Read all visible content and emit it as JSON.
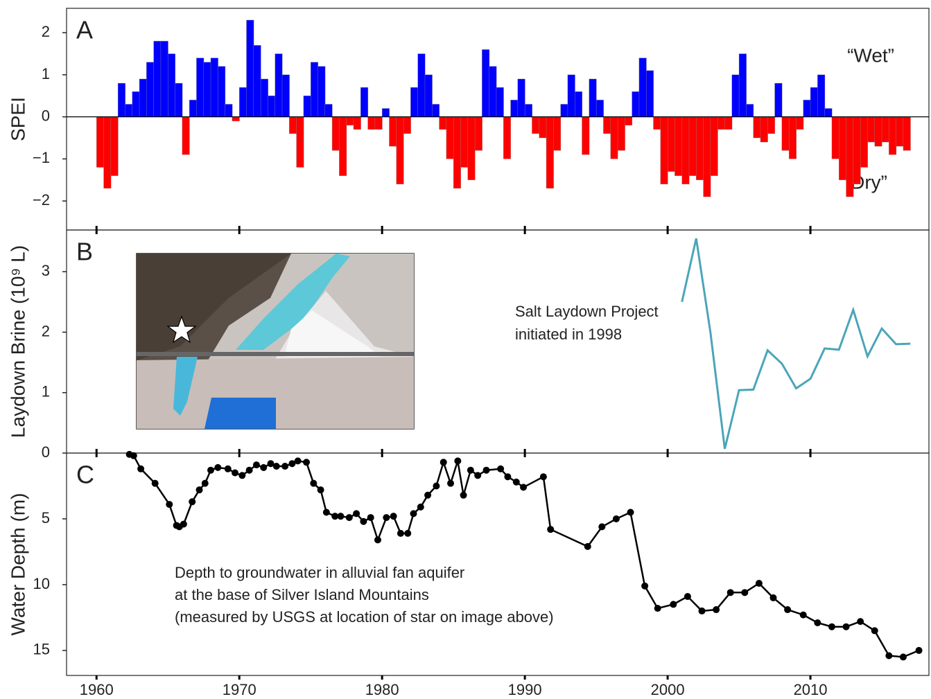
{
  "chart_data": [
    {
      "type": "bar",
      "panel_label": "A",
      "ylabel": "SPEI",
      "annotations": [
        "“Wet”",
        "“Dry”"
      ],
      "positive_color": "#0000ff",
      "negative_color": "#ff0000",
      "xlim": [
        1957.9,
        2018.3
      ],
      "ylim": [
        -2.69,
        2.58
      ],
      "yticks": [
        {
          "value": -2,
          "label": "−2"
        },
        {
          "value": -1,
          "label": "−1"
        },
        0,
        1,
        2
      ],
      "x": [
        1960.0,
        1960.5,
        1961.0,
        1961.5,
        1962.0,
        1962.5,
        1963.0,
        1963.5,
        1964.0,
        1964.5,
        1965.0,
        1965.5,
        1966.0,
        1966.5,
        1967.0,
        1967.5,
        1968.0,
        1968.5,
        1969.0,
        1969.5,
        1970.0,
        1970.5,
        1971.0,
        1971.5,
        1972.0,
        1972.5,
        1973.0,
        1973.5,
        1974.0,
        1974.5,
        1975.0,
        1975.5,
        1976.0,
        1976.5,
        1977.0,
        1977.5,
        1978.0,
        1978.5,
        1979.0,
        1979.5,
        1980.0,
        1980.5,
        1981.0,
        1981.5,
        1982.0,
        1982.5,
        1983.0,
        1983.5,
        1984.0,
        1984.5,
        1985.0,
        1985.5,
        1986.0,
        1986.5,
        1987.0,
        1987.5,
        1988.0,
        1988.5,
        1989.0,
        1989.5,
        1990.0,
        1990.5,
        1991.0,
        1991.5,
        1992.0,
        1992.5,
        1993.0,
        1993.5,
        1994.0,
        1994.5,
        1995.0,
        1995.5,
        1996.0,
        1996.5,
        1997.0,
        1997.5,
        1998.0,
        1998.5,
        1999.0,
        1999.5,
        2000.0,
        2000.5,
        2001.0,
        2001.5,
        2002.0,
        2002.5,
        2003.0,
        2003.5,
        2004.0,
        2004.5,
        2005.0,
        2005.5,
        2006.0,
        2006.5,
        2007.0,
        2007.5,
        2008.0,
        2008.5,
        2009.0,
        2009.5,
        2010.0,
        2010.5,
        2011.0,
        2011.5,
        2012.0,
        2012.5,
        2013.0,
        2013.5,
        2014.0,
        2014.5,
        2015.0,
        2015.5,
        2016.0,
        2016.5
      ],
      "values": [
        -1.2,
        -1.7,
        -1.4,
        0.8,
        0.3,
        0.6,
        0.9,
        1.3,
        1.8,
        1.8,
        1.5,
        0.8,
        -0.9,
        0.4,
        1.4,
        1.3,
        1.4,
        1.2,
        0.3,
        -0.1,
        0.7,
        2.3,
        1.7,
        0.9,
        0.5,
        1.5,
        1.0,
        -0.4,
        -1.2,
        0.5,
        1.3,
        1.2,
        0.3,
        -0.8,
        -1.4,
        -0.2,
        -0.3,
        0.7,
        -0.3,
        -0.3,
        0.2,
        -0.7,
        -1.6,
        -0.4,
        0.7,
        1.5,
        1.0,
        0.3,
        -0.3,
        -1.0,
        -1.7,
        -1.2,
        -1.5,
        -0.8,
        1.6,
        1.2,
        0.7,
        -1.0,
        0.4,
        0.9,
        0.3,
        -0.4,
        -0.5,
        -1.7,
        -0.8,
        0.3,
        1.0,
        0.6,
        -0.9,
        0.9,
        0.4,
        -0.4,
        -1.0,
        -0.8,
        -0.2,
        0.6,
        1.4,
        1.1,
        -0.3,
        -1.6,
        -1.3,
        -1.4,
        -1.6,
        -1.4,
        -1.5,
        -1.9,
        -1.4,
        -0.3,
        -0.3,
        1.0,
        1.5,
        0.3,
        -0.5,
        -0.6,
        -0.4,
        0.8,
        -0.8,
        -1.0,
        -0.3,
        0.4,
        0.7,
        1.0,
        0.2,
        -1.0,
        -1.5,
        -1.9,
        -1.6,
        -1.2,
        -0.6,
        -0.7,
        -0.6,
        -0.9,
        -0.7,
        -0.8
      ]
    },
    {
      "type": "line",
      "panel_label": "B",
      "ylabel": "Laydown Brine (10⁹ L)",
      "annotations": [
        "Salt Laydown Project",
        "initiated in 1998"
      ],
      "color": "#4aa5b8",
      "xlim": [
        1957.9,
        2018.3
      ],
      "ylim": [
        0,
        3.69
      ],
      "yticks": [
        0,
        1,
        2,
        3
      ],
      "x": [
        2001,
        2002,
        2003,
        2004,
        2005,
        2006,
        2007,
        2008,
        2009,
        2010,
        2011,
        2012,
        2013,
        2014,
        2015,
        2016,
        2017
      ],
      "values": [
        2.5,
        3.55,
        1.99,
        0.07,
        1.04,
        1.05,
        1.7,
        1.48,
        1.07,
        1.23,
        1.73,
        1.71,
        2.37,
        1.6,
        2.06,
        1.8,
        1.81
      ]
    },
    {
      "type": "line_points",
      "panel_label": "C",
      "ylabel": "Water Depth (m)",
      "annotations": [
        "Depth to groundwater in alluvial fan aquifer",
        "at the base of Silver Island Mountains",
        "(measured by USGS at location of star on image above)"
      ],
      "color": "#000000",
      "y_inverted": true,
      "xlim": [
        1957.9,
        2018.3
      ],
      "ylim": [
        0,
        16.9
      ],
      "yticks": [
        5,
        10,
        15
      ],
      "xticks": [
        1960,
        1970,
        1980,
        1990,
        2000,
        2010
      ],
      "x": [
        1962.3,
        1962.6,
        1963.1,
        1964.1,
        1965.1,
        1965.6,
        1965.8,
        1966.1,
        1966.7,
        1967.2,
        1967.6,
        1968.0,
        1968.5,
        1969.2,
        1969.7,
        1970.2,
        1970.7,
        1971.2,
        1971.7,
        1972.2,
        1972.6,
        1973.2,
        1973.7,
        1974.1,
        1974.7,
        1975.2,
        1975.7,
        1976.1,
        1976.7,
        1977.1,
        1977.7,
        1978.2,
        1978.7,
        1979.2,
        1979.7,
        1980.3,
        1980.8,
        1981.3,
        1981.8,
        1982.2,
        1982.7,
        1983.2,
        1983.8,
        1984.3,
        1984.8,
        1985.3,
        1985.7,
        1986.2,
        1986.7,
        1987.3,
        1988.3,
        1988.8,
        1989.4,
        1989.9,
        1991.3,
        1991.8,
        1994.4,
        1995.4,
        1996.4,
        1997.4,
        1998.4,
        1999.3,
        2000.4,
        2001.4,
        2002.4,
        2003.4,
        2004.4,
        2005.4,
        2006.4,
        2007.4,
        2008.4,
        2009.5,
        2010.5,
        2011.5,
        2012.5,
        2013.5,
        2014.5,
        2015.5,
        2016.5,
        2017.6
      ],
      "values": [
        0.1,
        0.2,
        1.2,
        2.3,
        3.9,
        5.5,
        5.6,
        5.4,
        3.7,
        2.8,
        2.3,
        1.3,
        1.1,
        1.2,
        1.5,
        1.7,
        1.3,
        0.9,
        1.1,
        0.8,
        1.0,
        1.0,
        0.8,
        0.6,
        0.7,
        2.3,
        2.8,
        4.5,
        4.8,
        4.8,
        4.9,
        4.6,
        5.2,
        4.9,
        6.6,
        4.9,
        4.8,
        6.1,
        6.1,
        4.6,
        4.1,
        3.2,
        2.5,
        0.7,
        2.3,
        0.6,
        3.2,
        1.3,
        1.7,
        1.3,
        1.2,
        1.8,
        2.2,
        2.6,
        1.8,
        5.8,
        7.1,
        5.6,
        5.0,
        4.5,
        10.1,
        11.8,
        11.5,
        10.9,
        12.0,
        11.9,
        10.6,
        10.6,
        9.9,
        11.0,
        11.9,
        12.3,
        12.9,
        13.2,
        13.2,
        12.8,
        13.5,
        15.4,
        15.5,
        15.0
      ]
    }
  ]
}
